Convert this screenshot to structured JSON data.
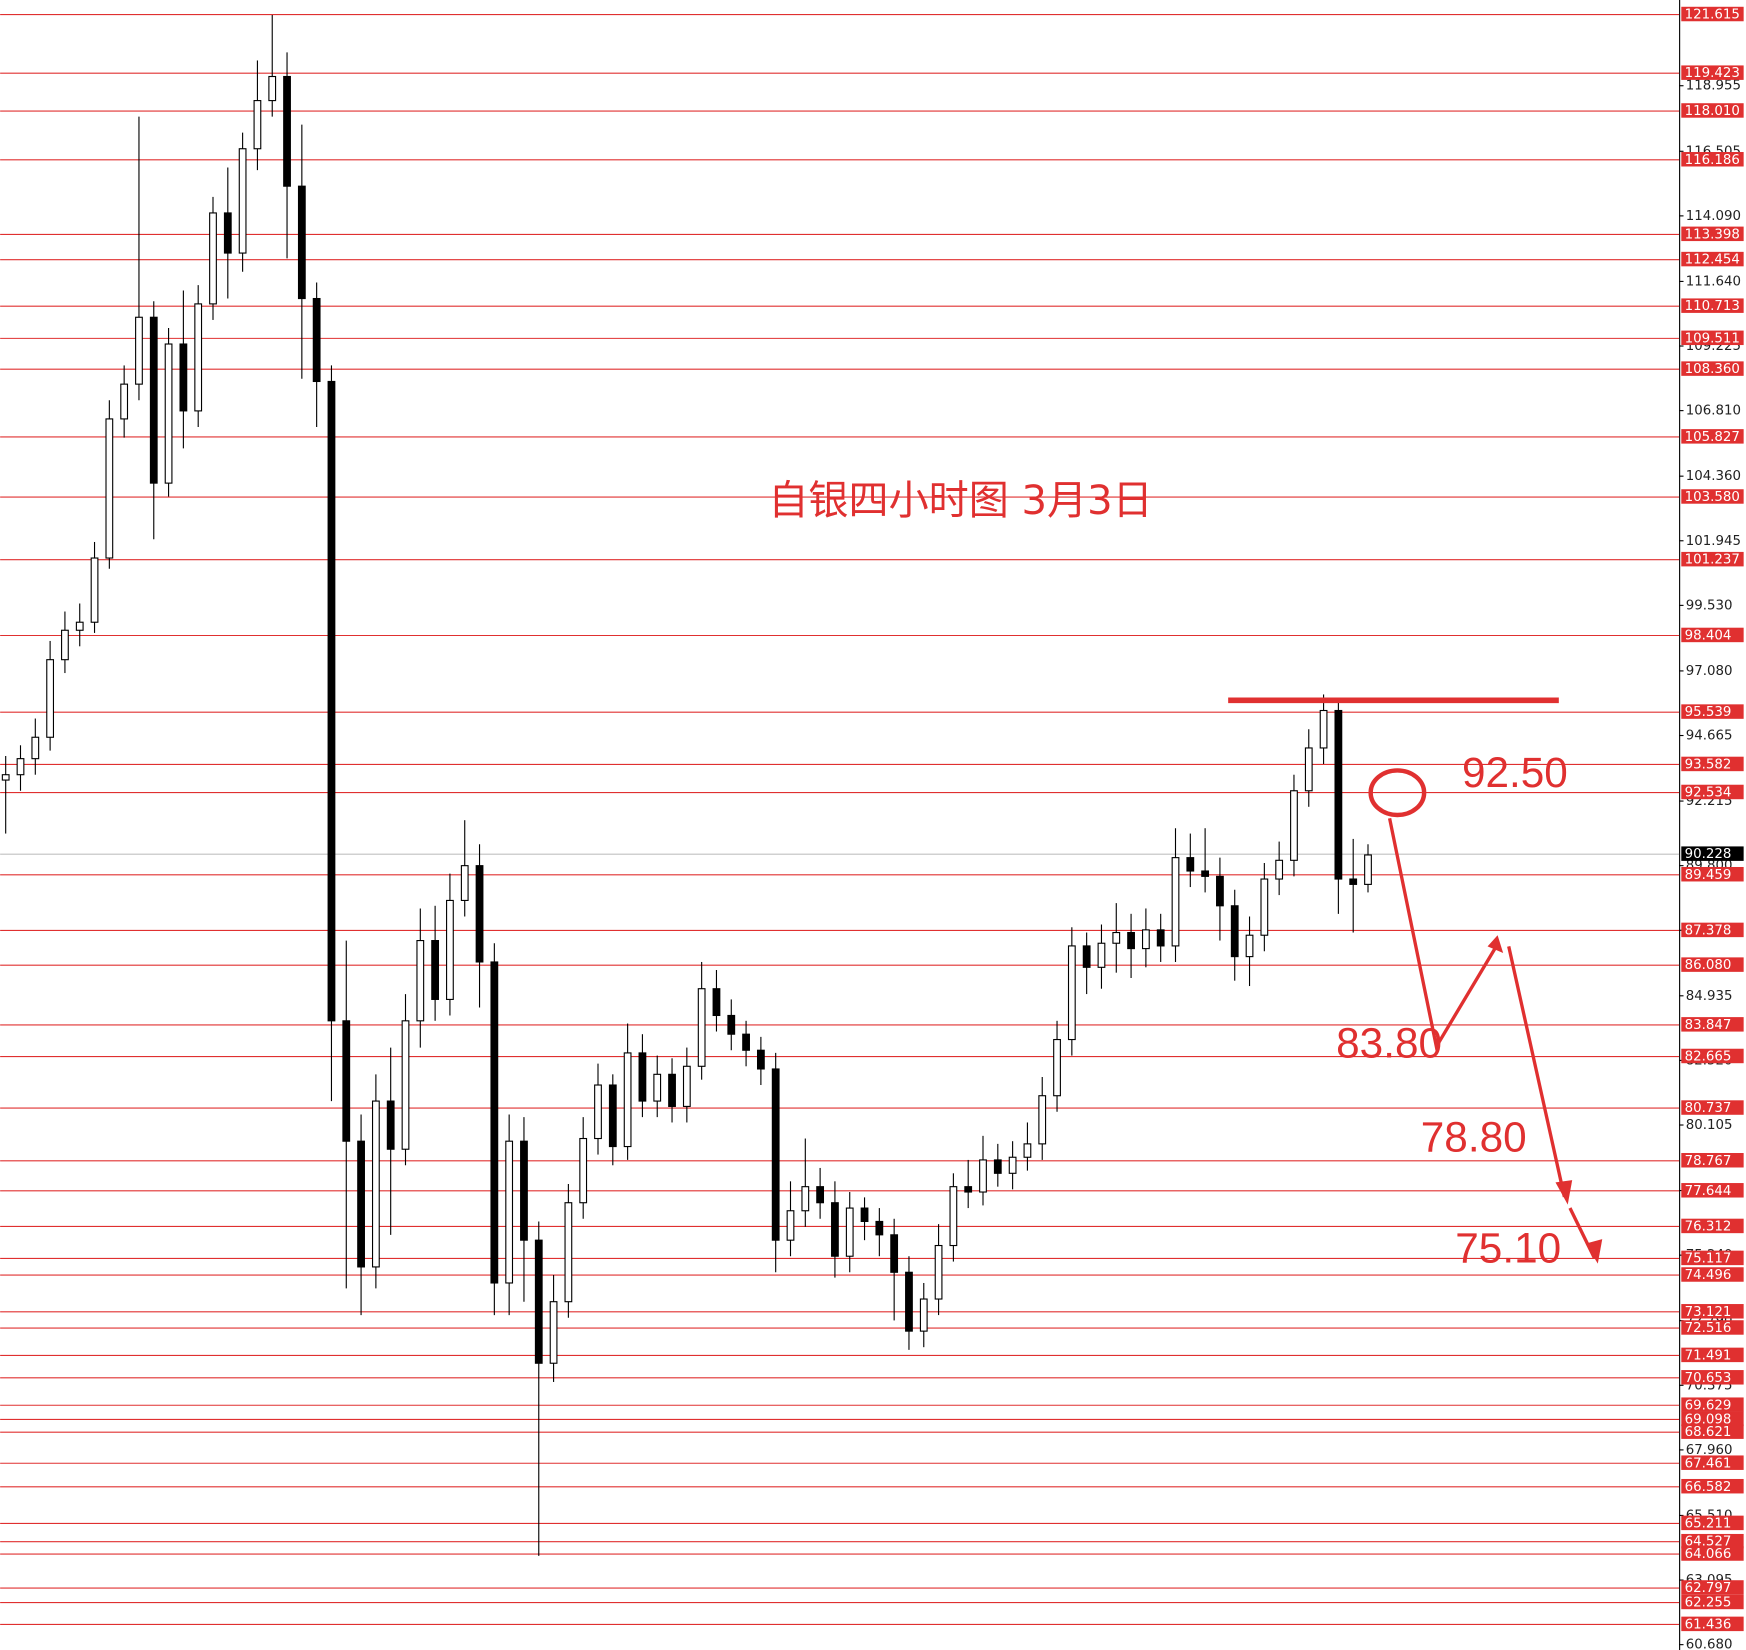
{
  "chart_data": {
    "type": "candlestick",
    "title": "自银四小时图  3月3日",
    "annotations": [
      "92.50",
      "83.80",
      "78.80",
      "75.10"
    ],
    "ylim": [
      60.48,
      122.16
    ],
    "yticks": [
      {
        "value": 118.955,
        "label": "118.955"
      },
      {
        "value": 116.505,
        "label": "116.505"
      },
      {
        "value": 114.09,
        "label": "114.090"
      },
      {
        "value": 111.64,
        "label": "111.640"
      },
      {
        "value": 109.225,
        "label": "109.225"
      },
      {
        "value": 106.81,
        "label": "106.810"
      },
      {
        "value": 104.36,
        "label": "104.360"
      },
      {
        "value": 101.945,
        "label": "101.945"
      },
      {
        "value": 99.53,
        "label": "99.530"
      },
      {
        "value": 97.08,
        "label": "97.080"
      },
      {
        "value": 94.665,
        "label": "94.665"
      },
      {
        "value": 92.215,
        "label": "92.215"
      },
      {
        "value": 89.8,
        "label": "89.800"
      },
      {
        "value": 87.385,
        "label": "87.385"
      },
      {
        "value": 84.935,
        "label": "84.935"
      },
      {
        "value": 82.52,
        "label": "82.520"
      },
      {
        "value": 80.105,
        "label": "80.105"
      },
      {
        "value": 77.655,
        "label": "77.655"
      },
      {
        "value": 75.24,
        "label": "75.240"
      },
      {
        "value": 72.79,
        "label": "72.790"
      },
      {
        "value": 70.375,
        "label": "70.375"
      },
      {
        "value": 67.96,
        "label": "67.960"
      },
      {
        "value": 65.51,
        "label": "65.510"
      },
      {
        "value": 63.095,
        "label": "63.095"
      },
      {
        "value": 60.68,
        "label": "60.680"
      }
    ],
    "levels": {
      "color": "#e03030",
      "values": [
        121.615,
        119.423,
        118.01,
        116.186,
        113.398,
        112.454,
        110.713,
        109.511,
        108.36,
        105.827,
        103.58,
        101.237,
        98.404,
        95.539,
        93.582,
        92.534,
        89.459,
        87.378,
        86.08,
        83.847,
        82.665,
        80.737,
        78.767,
        77.644,
        76.312,
        75.117,
        74.496,
        73.121,
        72.516,
        71.491,
        70.653,
        69.629,
        69.098,
        68.621,
        67.461,
        66.582,
        65.211,
        64.527,
        64.066,
        62.797,
        62.255,
        61.436
      ],
      "value_labels": [
        "121.615",
        "119.423",
        "118.010",
        "116.186",
        "113.398",
        "112.454",
        "110.713",
        "109.511",
        "108.360",
        "105.827",
        "103.580",
        "101.237",
        "98.404",
        "95.539",
        "93.582",
        "92.534",
        "89.459",
        "87.378",
        "86.080",
        "83.847",
        "82.665",
        "80.737",
        "78.767",
        "77.644",
        "76.312",
        "75.117",
        "74.496",
        "73.121",
        "72.516",
        "71.491",
        "70.653",
        "69.629",
        "69.098",
        "68.621",
        "67.461",
        "66.582",
        "65.211",
        "64.527",
        "64.066",
        "62.797",
        "62.255",
        "61.436"
      ]
    },
    "last_price": 90.228,
    "ohlc": [
      [
        93.0,
        93.9,
        91.0,
        93.2
      ],
      [
        93.2,
        94.3,
        92.6,
        93.8
      ],
      [
        93.8,
        95.3,
        93.2,
        94.6
      ],
      [
        94.6,
        98.2,
        94.1,
        97.5
      ],
      [
        97.5,
        99.3,
        97.0,
        98.6
      ],
      [
        98.6,
        99.6,
        98.0,
        98.9
      ],
      [
        98.9,
        101.9,
        98.5,
        101.3
      ],
      [
        101.3,
        107.2,
        100.9,
        106.5
      ],
      [
        106.5,
        108.5,
        105.8,
        107.8
      ],
      [
        107.8,
        117.8,
        107.2,
        110.3
      ],
      [
        110.3,
        110.9,
        102.0,
        104.1
      ],
      [
        104.1,
        109.9,
        103.6,
        109.3
      ],
      [
        109.3,
        111.3,
        105.4,
        106.8
      ],
      [
        106.8,
        111.5,
        106.2,
        110.8
      ],
      [
        110.8,
        114.8,
        110.2,
        114.2
      ],
      [
        114.2,
        115.9,
        111.0,
        112.7
      ],
      [
        112.7,
        117.2,
        112.0,
        116.6
      ],
      [
        116.6,
        119.9,
        115.8,
        118.4
      ],
      [
        118.4,
        121.6,
        117.8,
        119.3
      ],
      [
        119.3,
        120.2,
        112.5,
        115.2
      ],
      [
        115.2,
        117.5,
        108.0,
        111.0
      ],
      [
        111.0,
        111.6,
        106.2,
        107.9
      ],
      [
        107.9,
        108.5,
        81.0,
        84.0
      ],
      [
        84.0,
        87.0,
        74.0,
        79.5
      ],
      [
        79.5,
        80.5,
        73.0,
        74.8
      ],
      [
        74.8,
        82.0,
        74.0,
        81.0
      ],
      [
        81.0,
        83.0,
        76.0,
        79.2
      ],
      [
        79.2,
        85.0,
        78.6,
        84.0
      ],
      [
        84.0,
        88.2,
        83.0,
        87.0
      ],
      [
        87.0,
        88.3,
        84.0,
        84.8
      ],
      [
        84.8,
        89.5,
        84.2,
        88.5
      ],
      [
        88.5,
        91.5,
        87.9,
        89.8
      ],
      [
        89.8,
        90.6,
        84.5,
        86.2
      ],
      [
        86.2,
        86.9,
        73.0,
        74.2
      ],
      [
        74.2,
        80.5,
        73.0,
        79.5
      ],
      [
        79.5,
        80.4,
        73.5,
        75.8
      ],
      [
        75.8,
        76.5,
        64.0,
        71.2
      ],
      [
        71.2,
        74.5,
        70.5,
        73.5
      ],
      [
        73.5,
        77.9,
        72.9,
        77.2
      ],
      [
        77.2,
        80.4,
        76.6,
        79.6
      ],
      [
        79.6,
        82.4,
        79.0,
        81.6
      ],
      [
        81.6,
        82.0,
        78.6,
        79.3
      ],
      [
        79.3,
        83.9,
        78.8,
        82.8
      ],
      [
        82.8,
        83.5,
        80.4,
        81.0
      ],
      [
        81.0,
        82.7,
        80.4,
        82.0
      ],
      [
        82.0,
        82.6,
        80.2,
        80.8
      ],
      [
        80.8,
        83.0,
        80.2,
        82.3
      ],
      [
        82.3,
        86.2,
        81.8,
        85.2
      ],
      [
        85.2,
        85.9,
        83.6,
        84.2
      ],
      [
        84.2,
        84.8,
        82.9,
        83.5
      ],
      [
        83.5,
        84.0,
        82.3,
        82.9
      ],
      [
        82.9,
        83.4,
        81.6,
        82.2
      ],
      [
        82.2,
        82.8,
        74.6,
        75.8
      ],
      [
        75.8,
        78.0,
        75.2,
        76.9
      ],
      [
        76.9,
        79.6,
        76.3,
        77.8
      ],
      [
        77.8,
        78.5,
        76.6,
        77.2
      ],
      [
        77.2,
        78.0,
        74.4,
        75.2
      ],
      [
        75.2,
        77.6,
        74.6,
        77.0
      ],
      [
        77.0,
        77.4,
        75.8,
        76.5
      ],
      [
        76.5,
        77.0,
        75.2,
        76.0
      ],
      [
        76.0,
        76.6,
        72.8,
        74.6
      ],
      [
        74.6,
        75.2,
        71.7,
        72.4
      ],
      [
        72.4,
        74.2,
        71.8,
        73.6
      ],
      [
        73.6,
        76.4,
        73.0,
        75.6
      ],
      [
        75.6,
        78.3,
        75.0,
        77.8
      ],
      [
        77.8,
        78.8,
        77.0,
        77.6
      ],
      [
        77.6,
        79.7,
        77.1,
        78.8
      ],
      [
        78.8,
        79.4,
        77.8,
        78.3
      ],
      [
        78.3,
        79.5,
        77.7,
        78.9
      ],
      [
        78.9,
        80.2,
        78.4,
        79.4
      ],
      [
        79.4,
        81.9,
        78.8,
        81.2
      ],
      [
        81.2,
        84.0,
        80.6,
        83.3
      ],
      [
        83.3,
        87.5,
        82.7,
        86.8
      ],
      [
        86.8,
        87.3,
        85.0,
        86.0
      ],
      [
        86.0,
        87.6,
        85.2,
        86.9
      ],
      [
        86.9,
        88.4,
        85.8,
        87.3
      ],
      [
        87.3,
        88.0,
        85.6,
        86.7
      ],
      [
        86.7,
        88.2,
        86.0,
        87.4
      ],
      [
        87.4,
        88.0,
        86.2,
        86.8
      ],
      [
        86.8,
        91.2,
        86.2,
        90.1
      ],
      [
        90.1,
        91.0,
        89.0,
        89.6
      ],
      [
        89.6,
        91.2,
        88.8,
        89.4
      ],
      [
        89.4,
        90.1,
        87.0,
        88.3
      ],
      [
        88.3,
        88.9,
        85.5,
        86.4
      ],
      [
        86.4,
        87.9,
        85.3,
        87.2
      ],
      [
        87.2,
        89.9,
        86.6,
        89.3
      ],
      [
        89.3,
        90.7,
        88.7,
        90.0
      ],
      [
        90.0,
        93.2,
        89.4,
        92.6
      ],
      [
        92.6,
        94.9,
        92.0,
        94.2
      ],
      [
        94.2,
        96.2,
        93.6,
        95.6
      ],
      [
        95.6,
        95.9,
        88.0,
        89.3
      ],
      [
        89.3,
        90.8,
        87.3,
        89.1
      ],
      [
        89.1,
        90.6,
        88.8,
        90.2
      ]
    ]
  }
}
